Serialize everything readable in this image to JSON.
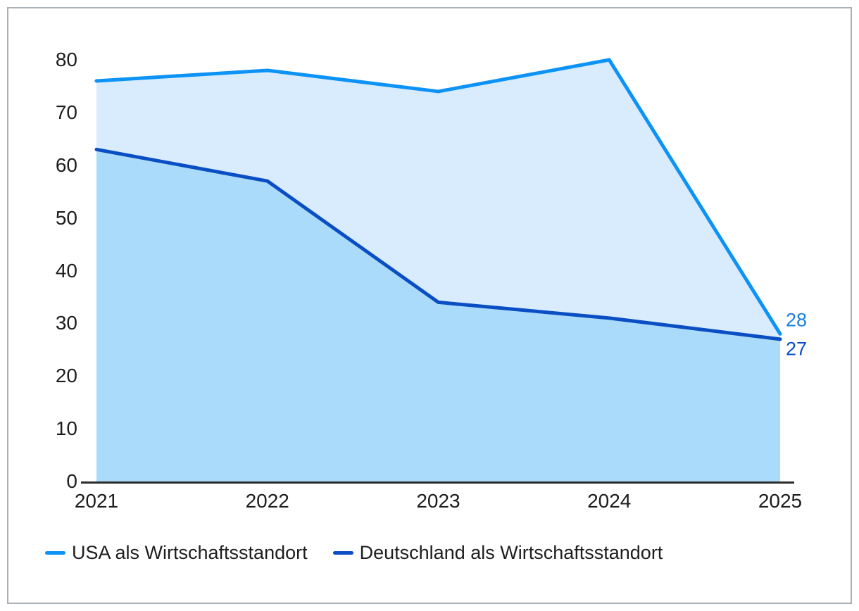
{
  "chart_data": {
    "type": "area",
    "categories": [
      "2021",
      "2022",
      "2023",
      "2024",
      "2025"
    ],
    "series": [
      {
        "name": "USA als Wirtschaftsstandort",
        "values": [
          76,
          78,
          74,
          80,
          28
        ],
        "line_color": "#0d93f5",
        "fill_color": "#d9ecfd",
        "end_label": "28",
        "end_label_color": "#1a7fdf"
      },
      {
        "name": "Deutschland als Wirtschaftsstandort",
        "values": [
          63,
          57,
          34,
          31,
          27
        ],
        "line_color": "#0a4ec4",
        "fill_color": "#abdbfa",
        "end_label": "27",
        "end_label_color": "#0a4ec4"
      }
    ],
    "title": "",
    "xlabel": "",
    "ylabel": "",
    "y_ticks": [
      0,
      10,
      20,
      30,
      40,
      50,
      60,
      70,
      80
    ],
    "ylim": [
      0,
      80
    ],
    "grid": false,
    "legend_position": "bottom"
  },
  "colors": {
    "axis_line": "#2b2b2b",
    "tick_text": "#1d1d1d",
    "legend_text": "#1e1e1e",
    "frame_border": "#aab0b8",
    "background": "#ffffff"
  }
}
